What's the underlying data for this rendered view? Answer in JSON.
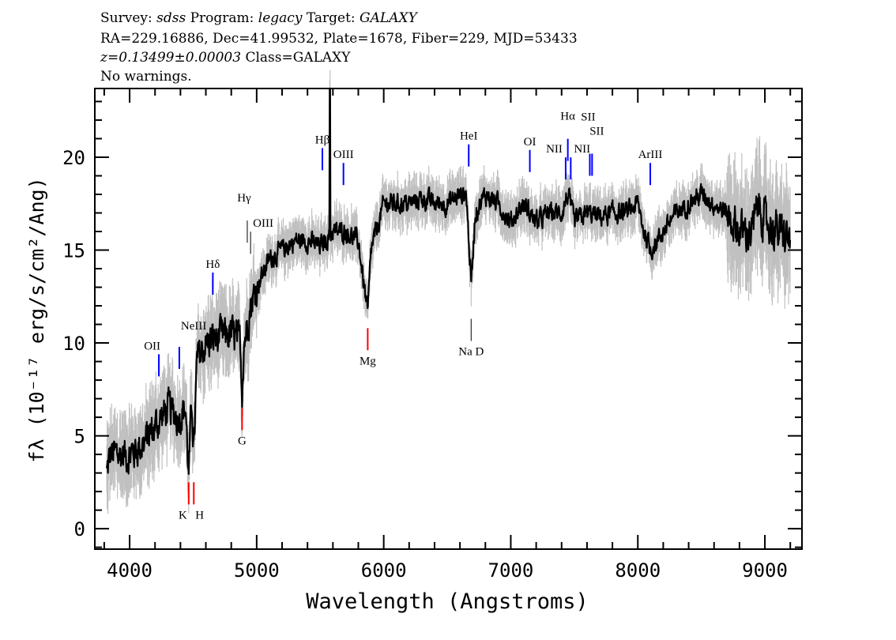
{
  "header": {
    "line1": {
      "survey_label": "Survey:",
      "survey": "sdss",
      "program_label": "Program:",
      "program": "legacy",
      "target_label": "Target:",
      "target": "GALAXY"
    },
    "line2": "RA=229.16886, Dec=41.99532, Plate=1678, Fiber=229, MJD=53433",
    "line3": {
      "redshift": "z=0.13499±0.00003",
      "class": "Class=GALAXY"
    },
    "line4": "No warnings."
  },
  "chart_data": {
    "type": "line",
    "xlabel": "Wavelength (Angstroms)",
    "ylabel": "fλ (10⁻¹⁷ erg/s/cm²/Ang)",
    "xlim": [
      3726,
      9292
    ],
    "ylim": [
      -1.1,
      23.7
    ],
    "xticks": [
      4000,
      5000,
      6000,
      7000,
      8000,
      9000
    ],
    "yticks": [
      0,
      5,
      10,
      15,
      20
    ],
    "grid": false,
    "colors": {
      "flux": "#000000",
      "error": "#c0c0c0",
      "emission": "#0000ff",
      "absorption": "#ff0000",
      "other": "#000000"
    },
    "spectrum_approx": [
      [
        3820,
        3
      ],
      [
        3850,
        4
      ],
      [
        3900,
        4
      ],
      [
        4000,
        4
      ],
      [
        4100,
        4.5
      ],
      [
        4200,
        5.5
      ],
      [
        4300,
        6.5
      ],
      [
        4380,
        6
      ],
      [
        4440,
        6.5
      ],
      [
        4465,
        3
      ],
      [
        4490,
        7
      ],
      [
        4505,
        4
      ],
      [
        4530,
        9
      ],
      [
        4600,
        10
      ],
      [
        4700,
        10.3
      ],
      [
        4800,
        10.5
      ],
      [
        4870,
        10
      ],
      [
        4885,
        7.5
      ],
      [
        4900,
        10
      ],
      [
        4950,
        12
      ],
      [
        5000,
        13
      ],
      [
        5100,
        14.5
      ],
      [
        5200,
        15
      ],
      [
        5300,
        15.5
      ],
      [
        5400,
        15.5
      ],
      [
        5500,
        15.2
      ],
      [
        5600,
        16
      ],
      [
        5700,
        16
      ],
      [
        5800,
        15.5
      ],
      [
        5874,
        11.5
      ],
      [
        5900,
        15
      ],
      [
        6000,
        17.5
      ],
      [
        6100,
        17.5
      ],
      [
        6200,
        17.5
      ],
      [
        6300,
        17.8
      ],
      [
        6400,
        17.5
      ],
      [
        6500,
        17.5
      ],
      [
        6600,
        18
      ],
      [
        6650,
        18
      ],
      [
        6688,
        13.2
      ],
      [
        6720,
        17
      ],
      [
        6800,
        18
      ],
      [
        6900,
        17.5
      ],
      [
        7000,
        16.5
      ],
      [
        7100,
        17.5
      ],
      [
        7200,
        16.5
      ],
      [
        7300,
        17
      ],
      [
        7400,
        17
      ],
      [
        7449,
        18
      ],
      [
        7500,
        16.5
      ],
      [
        7600,
        17
      ],
      [
        7700,
        16.8
      ],
      [
        7800,
        17
      ],
      [
        7900,
        17
      ],
      [
        8000,
        17.5
      ],
      [
        8050,
        16
      ],
      [
        8100,
        15
      ],
      [
        8200,
        16
      ],
      [
        8300,
        17
      ],
      [
        8400,
        17.5
      ],
      [
        8500,
        18
      ],
      [
        8600,
        17.5
      ],
      [
        8700,
        17
      ],
      [
        8800,
        16
      ],
      [
        8900,
        16
      ],
      [
        8950,
        17.5
      ],
      [
        9000,
        16.5
      ],
      [
        9100,
        16
      ],
      [
        9200,
        15.5
      ]
    ],
    "sky_line": {
      "x": 5577,
      "y": 23.7
    },
    "lines": [
      {
        "label": "OII",
        "x": 4230,
        "kind": "emission",
        "y": 8.2
      },
      {
        "label": "NeIII",
        "x": 4391,
        "kind": "emission",
        "y": 8.6
      },
      {
        "label": "K",
        "x": 4465,
        "kind": "absorption",
        "y": 2.5
      },
      {
        "label": "H",
        "x": 4505,
        "kind": "absorption",
        "y": 2.5
      },
      {
        "label": "Hδ",
        "x": 4655,
        "kind": "emission",
        "y": 12.6
      },
      {
        "label": "G",
        "x": 4885,
        "kind": "absorption",
        "y": 6.5
      },
      {
        "label": "Hγ",
        "x": 4926,
        "kind": "other",
        "y": 15.4
      },
      {
        "label": "OIII",
        "x": 4952,
        "kind": "other",
        "y": 14.8
      },
      {
        "label": "Hβ",
        "x": 5517,
        "kind": "emission",
        "y": 19.3
      },
      {
        "label": "OIII",
        "x": 5683,
        "kind": "emission",
        "y": 18.5
      },
      {
        "label": "Mg",
        "x": 5874,
        "kind": "absorption",
        "y": 10.8
      },
      {
        "label": "HeI",
        "x": 6669,
        "kind": "emission",
        "y": 19.5
      },
      {
        "label": "Na D",
        "x": 6688,
        "kind": "other",
        "y": 11.3
      },
      {
        "label": "OI",
        "x": 7150,
        "kind": "emission",
        "y": 19.2
      },
      {
        "label": "NII",
        "x": 7432,
        "kind": "emission",
        "y": 18.8
      },
      {
        "label": "Hα",
        "x": 7449,
        "kind": "emission",
        "y": 19.8
      },
      {
        "label": "NII",
        "x": 7472,
        "kind": "emission",
        "y": 18.8
      },
      {
        "label": "SII",
        "x": 7622,
        "kind": "emission",
        "y": 19.0
      },
      {
        "label": "SII",
        "x": 7640,
        "kind": "emission",
        "y": 19.0
      },
      {
        "label": "ArIII",
        "x": 8098,
        "kind": "emission",
        "y": 18.5
      }
    ]
  }
}
